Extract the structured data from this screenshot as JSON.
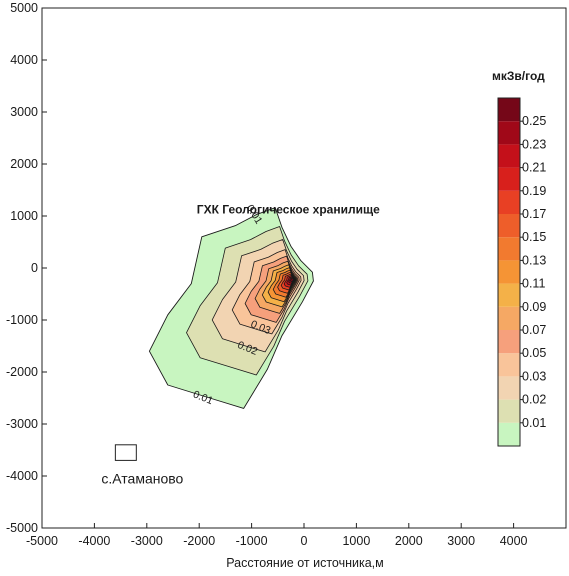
{
  "chart_data": {
    "type": "contour",
    "xlabel": "Расстояние от источника,м",
    "ylabel": "",
    "xlim": [
      -5000,
      5000
    ],
    "ylim": [
      -5000,
      5000
    ],
    "x_ticks": [
      -5000,
      -4000,
      -3000,
      -2000,
      -1000,
      0,
      1000,
      2000,
      3000,
      4000
    ],
    "y_ticks": [
      -5000,
      -4000,
      -3000,
      -2000,
      -1000,
      0,
      1000,
      2000,
      3000,
      4000,
      5000
    ],
    "colorbar": {
      "title": "мкЗв/год",
      "levels": [
        0.01,
        0.02,
        0.03,
        0.05,
        0.07,
        0.09,
        0.11,
        0.13,
        0.15,
        0.17,
        0.19,
        0.21,
        0.23,
        0.25
      ],
      "labels": [
        "0.01",
        "0.02",
        "0.03",
        "0.05",
        "0.07",
        "0.09",
        "0.11",
        "0.13",
        "0.15",
        "0.17",
        "0.19",
        "0.21",
        "0.23",
        "0.25"
      ],
      "colors": [
        "#c8f5c0",
        "#dde0b2",
        "#f2d4b2",
        "#f9c49a",
        "#f6a07c",
        "#f5a864",
        "#f4b148",
        "#f59435",
        "#f27a2f",
        "#ee5e2a",
        "#e84024",
        "#d8201c",
        "#c4101a",
        "#a00818",
        "#750718"
      ]
    },
    "contour_labels": [
      {
        "text": "0.01",
        "x": -1000,
        "y": 1000
      },
      {
        "text": "0.03",
        "x": -850,
        "y": -1200
      },
      {
        "text": "0.02",
        "x": -1100,
        "y": -1600
      },
      {
        "text": "0.01",
        "x": -1950,
        "y": -2550
      }
    ],
    "annotations": [
      {
        "text": "ГХК Геологическое хранилище",
        "x": -300,
        "y": 1050
      }
    ],
    "source": {
      "x": -250,
      "y": -250
    },
    "village": {
      "label": "с.Атаманово",
      "x0": -3600,
      "x1": -3200,
      "y0": -3700,
      "y1": -3400
    }
  }
}
